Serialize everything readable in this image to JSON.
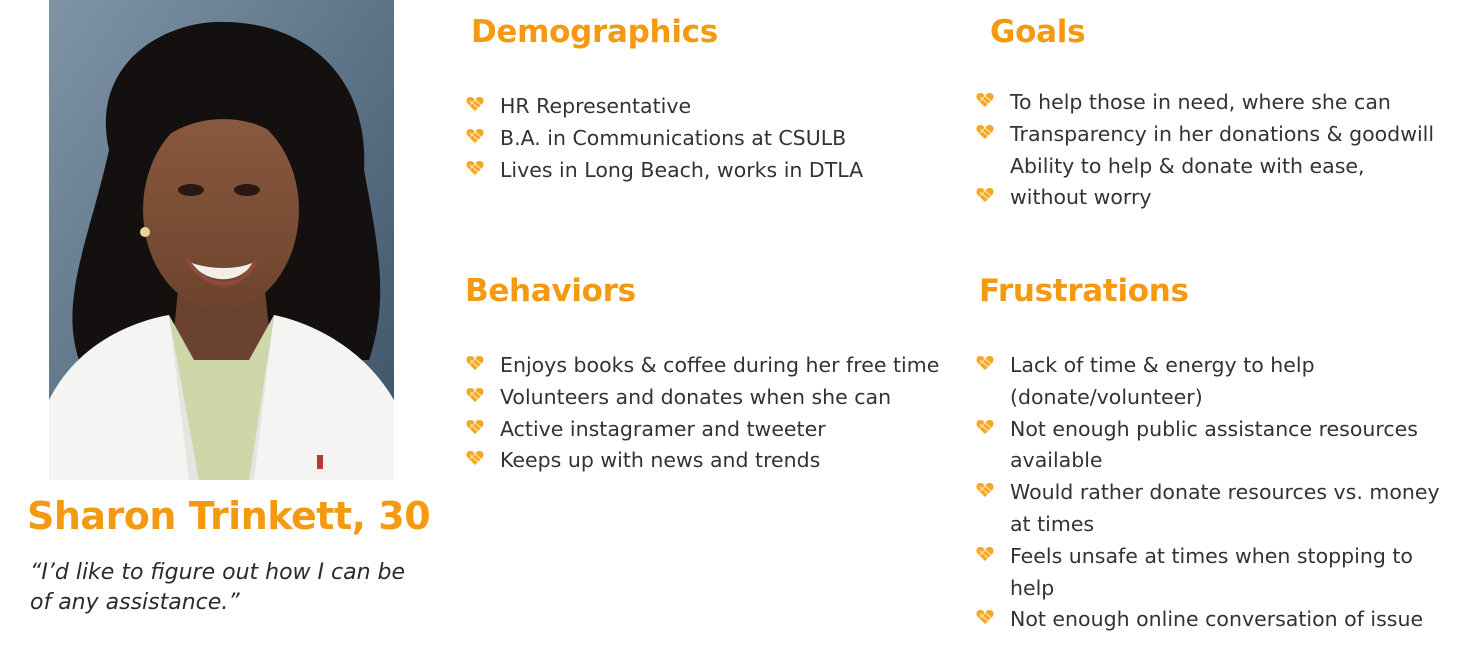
{
  "persona": {
    "name": "Sharon Trinkett, 30",
    "quote": "“I’d like to figure out how I can be of any assistance.”"
  },
  "colors": {
    "accent": "#f39a11",
    "text": "#333333"
  },
  "bullet_icon": "heart-icon",
  "sections": {
    "demographics": {
      "title": "Demographics",
      "items": [
        "HR Representative",
        "B.A. in Communications at CSULB",
        "Lives in Long Beach, works in DTLA"
      ]
    },
    "goals": {
      "title": "Goals",
      "items": [
        "To help those in need, where she can",
        "Transparency in her donations & goodwill",
        "Ability to help & donate with ease,",
        "without worry"
      ]
    },
    "behaviors": {
      "title": "Behaviors",
      "items": [
        "Enjoys books & coffee during her free time",
        "Volunteers and donates when she can",
        "Active instagramer and tweeter",
        "Keeps up with news and trends"
      ]
    },
    "frustrations": {
      "title": "Frustrations",
      "items": [
        "Lack of time & energy to help",
        "(donate/volunteer)",
        "Not enough public assistance resources",
        "available",
        "Would rather donate resources vs. money",
        "at times",
        "Feels unsafe at times when stopping to",
        "help",
        "Not enough online conversation of issue"
      ]
    }
  }
}
